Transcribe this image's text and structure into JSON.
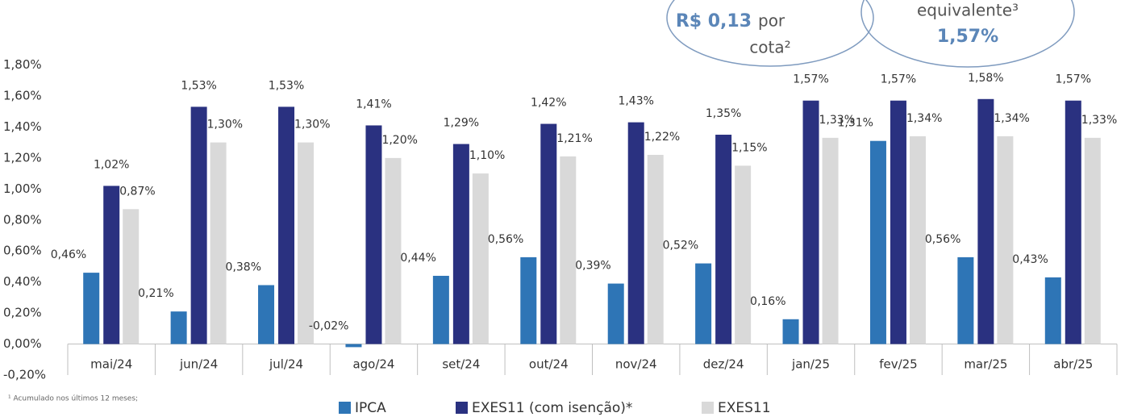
{
  "chart_data": {
    "type": "bar",
    "categories": [
      "mai/24",
      "jun/24",
      "jul/24",
      "ago/24",
      "set/24",
      "out/24",
      "nov/24",
      "dez/24",
      "jan/25",
      "fev/25",
      "mar/25",
      "abr/25"
    ],
    "series": [
      {
        "name": "IPCA",
        "color": "#2e75b6",
        "values": [
          0.46,
          0.21,
          0.38,
          -0.02,
          0.44,
          0.56,
          0.39,
          0.52,
          0.16,
          1.31,
          0.56,
          0.43
        ],
        "value_labels": [
          "0,46%",
          "0,21%",
          "0,38%",
          "-0,02%",
          "0,44%",
          "0,56%",
          "0,39%",
          "0,52%",
          "0,16%",
          "1,31%",
          "0,56%",
          "0,43%"
        ]
      },
      {
        "name": "EXES11 (com isenção)*",
        "color": "#2a3180",
        "values": [
          1.02,
          1.53,
          1.53,
          1.41,
          1.29,
          1.42,
          1.43,
          1.35,
          1.57,
          1.57,
          1.58,
          1.57
        ],
        "value_labels": [
          "1,02%",
          "1,53%",
          "1,53%",
          "1,41%",
          "1,29%",
          "1,42%",
          "1,43%",
          "1,35%",
          "1,57%",
          "1,57%",
          "1,58%",
          "1,57%"
        ]
      },
      {
        "name": "EXES11",
        "color": "#d9d9d9",
        "values": [
          0.87,
          1.3,
          1.3,
          1.2,
          1.1,
          1.21,
          1.22,
          1.15,
          1.33,
          1.34,
          1.34,
          1.33
        ],
        "value_labels": [
          "0,87%",
          "1,30%",
          "1,30%",
          "1,20%",
          "1,10%",
          "1,21%",
          "1,22%",
          "1,15%",
          "1,33%",
          "1,34%",
          "1,34%",
          "1,33%"
        ]
      }
    ],
    "ylim": [
      -0.2,
      1.8
    ],
    "yticks": [
      {
        "value": -0.2,
        "label": "-0,20%"
      },
      {
        "value": 0,
        "label": "0,00%"
      },
      {
        "value": 0.2,
        "label": "0,20%"
      },
      {
        "value": 0.4,
        "label": "0,40%"
      },
      {
        "value": 0.6,
        "label": "0,60%"
      },
      {
        "value": 0.8,
        "label": "0,80%"
      },
      {
        "value": 1.0,
        "label": "1,00%"
      },
      {
        "value": 1.2,
        "label": "1,20%"
      },
      {
        "value": 1.4,
        "label": "1,40%"
      },
      {
        "value": 1.6,
        "label": "1,60%"
      },
      {
        "value": 1.8,
        "label": "1,80%"
      }
    ],
    "legend": "bottom"
  },
  "callouts": [
    {
      "lines": [
        "R$ 0,13",
        "por",
        "cota²"
      ]
    },
    {
      "lines": [
        "equivalente³",
        "1,57%"
      ]
    }
  ],
  "footnote": "¹ Acumulado nos últimos 12 meses;"
}
